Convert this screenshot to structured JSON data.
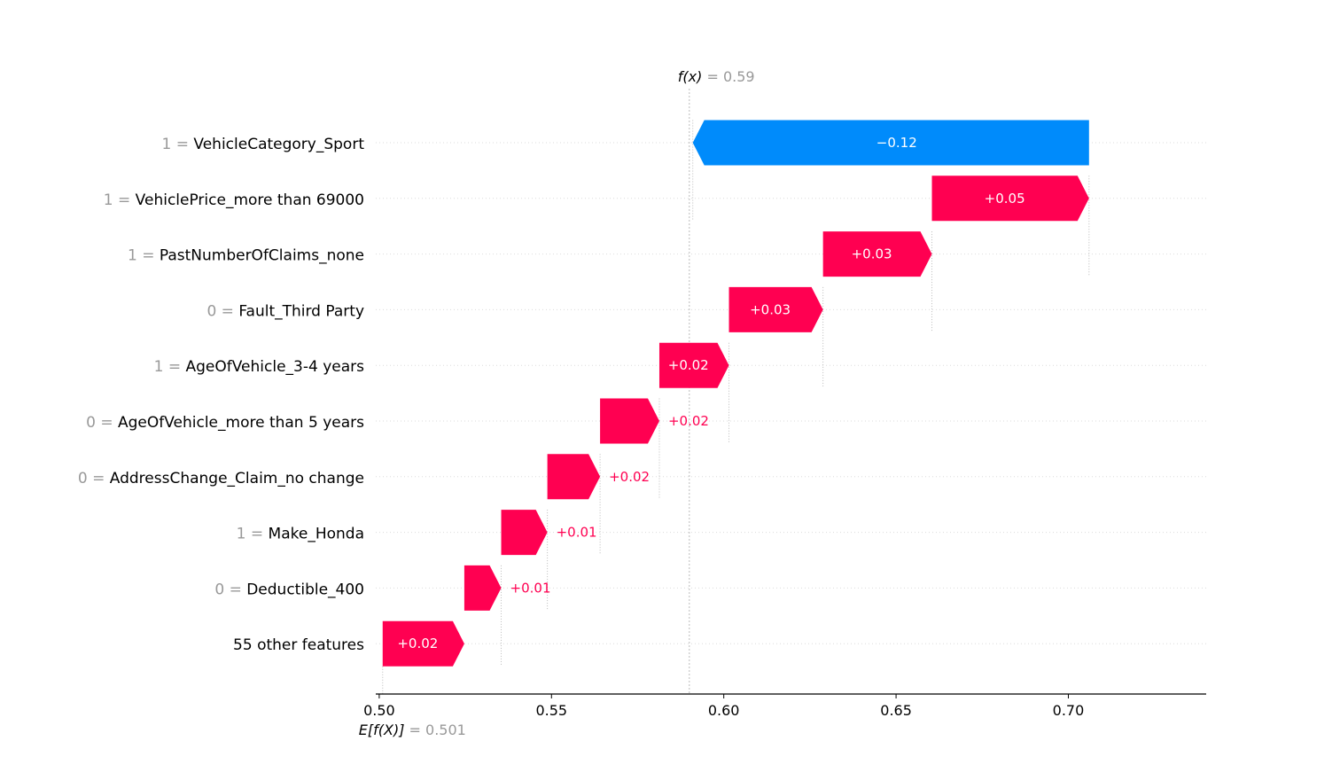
{
  "chart_data": {
    "type": "waterfall",
    "base_value": 0.501,
    "base_label": "E[f(X)]",
    "base_value_text": "0.501",
    "output_value": 0.59,
    "output_label": "f(x)",
    "output_value_text": "0.59",
    "xlim": [
      0.499,
      0.74
    ],
    "x_ticks": [
      0.5,
      0.55,
      0.6,
      0.65,
      0.7
    ],
    "x_tick_labels": [
      "0.50",
      "0.55",
      "0.60",
      "0.65",
      "0.70"
    ],
    "colors": {
      "positive": "#ff0051",
      "negative": "#008bfb"
    },
    "features": [
      {
        "value": "1 =",
        "name": "VehicleCategory_Sport",
        "start": 0.706,
        "end": 0.591,
        "label": "−0.12"
      },
      {
        "value": "1 =",
        "name": "VehiclePrice_more than 69000",
        "start": 0.6604,
        "end": 0.706,
        "label": "+0.05"
      },
      {
        "value": "1 =",
        "name": "PastNumberOfClaims_none",
        "start": 0.6288,
        "end": 0.6604,
        "label": "+0.03"
      },
      {
        "value": "0 =",
        "name": "Fault_Third Party",
        "start": 0.6015,
        "end": 0.6288,
        "label": "+0.03"
      },
      {
        "value": "1 =",
        "name": "AgeOfVehicle_3-4 years",
        "start": 0.5813,
        "end": 0.6015,
        "label": "+0.02"
      },
      {
        "value": "0 =",
        "name": "AgeOfVehicle_more than 5 years",
        "start": 0.5641,
        "end": 0.5813,
        "label": "+0.02"
      },
      {
        "value": "0 =",
        "name": "AddressChange_Claim_no change",
        "start": 0.5488,
        "end": 0.5641,
        "label": "+0.02"
      },
      {
        "value": "1 =",
        "name": "Make_Honda",
        "start": 0.5354,
        "end": 0.5488,
        "label": "+0.01"
      },
      {
        "value": "0 =",
        "name": "Deductible_400",
        "start": 0.5247,
        "end": 0.5354,
        "label": "+0.01"
      },
      {
        "value": "",
        "name": "55 other features",
        "start": 0.501,
        "end": 0.5247,
        "label": "+0.02"
      }
    ]
  }
}
